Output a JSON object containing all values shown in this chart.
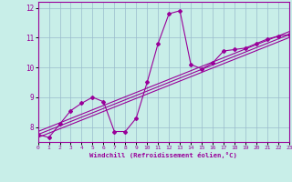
{
  "xlabel": "Windchill (Refroidissement éolien,°C)",
  "xlim": [
    0,
    23
  ],
  "ylim": [
    7.5,
    12.2
  ],
  "yticks": [
    8,
    9,
    10,
    11,
    12
  ],
  "xticks": [
    0,
    1,
    2,
    3,
    4,
    5,
    6,
    7,
    8,
    9,
    10,
    11,
    12,
    13,
    14,
    15,
    16,
    17,
    18,
    19,
    20,
    21,
    22,
    23
  ],
  "bg_color": "#c8eee8",
  "grid_color": "#99bbcc",
  "line_color": "#990099",
  "main_x": [
    0,
    1,
    2,
    3,
    4,
    5,
    6,
    7,
    8,
    9,
    10,
    11,
    12,
    13,
    14,
    15,
    16,
    17,
    18,
    19,
    20,
    21,
    22,
    23
  ],
  "main_y": [
    7.75,
    7.65,
    8.1,
    8.55,
    8.8,
    9.0,
    8.85,
    7.85,
    7.85,
    8.3,
    9.5,
    10.8,
    11.8,
    11.9,
    10.1,
    9.95,
    10.15,
    10.55,
    10.6,
    10.65,
    10.8,
    10.95,
    11.05,
    11.1
  ],
  "trend_x0": 0,
  "trend_x1": 23,
  "trend_y0": 7.75,
  "trend_y1": 11.1,
  "trend_offsets": [
    -0.1,
    0.0,
    0.1
  ]
}
